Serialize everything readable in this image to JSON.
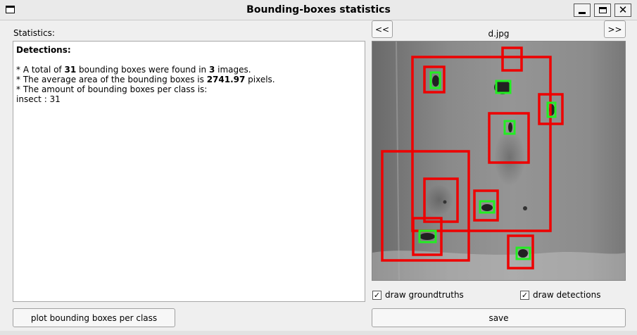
{
  "window": {
    "title": "Bounding-boxes statistics"
  },
  "stats": {
    "label": "Statistics:",
    "heading": "Detections:",
    "line1": {
      "prefix": "* A total of ",
      "boxes": "31",
      "mid": " bounding boxes were found in ",
      "images": "3",
      "suffix": " images."
    },
    "line2": {
      "prefix": "* The average area of the bounding boxes is ",
      "area": "2741.97",
      "suffix": " pixels."
    },
    "line3": "* The amount of bounding boxes per class is:",
    "line4": "insect : 31"
  },
  "buttons": {
    "plot": "plot bounding boxes per class",
    "prev": "<<",
    "next": ">>",
    "save": "save"
  },
  "viewer": {
    "filename": "d.jpg"
  },
  "checkboxes": {
    "groundtruths": "draw groundtruths",
    "detections": "draw detections",
    "check_glyph": "✓"
  },
  "colors": {
    "groundtruth_box": "#ee0000",
    "detection_box": "#22ee22"
  }
}
